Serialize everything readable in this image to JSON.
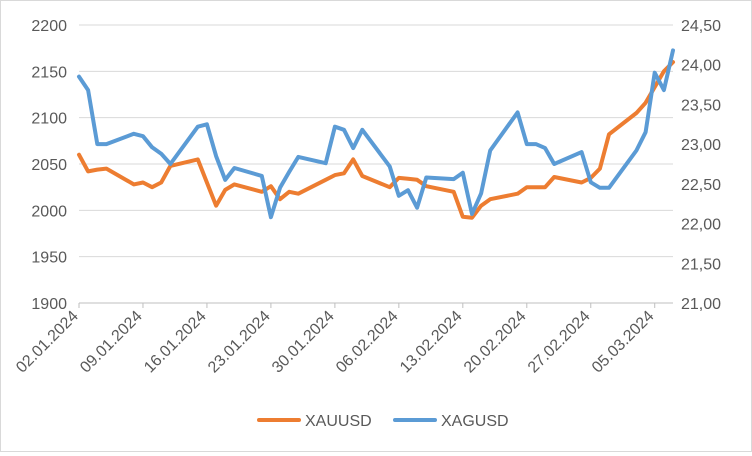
{
  "chart_data": {
    "type": "line",
    "title": "",
    "xlabel": "",
    "ylabel_left": "",
    "ylabel_right": "",
    "x_tick_labels": [
      "02.01.2024",
      "09.01.2024",
      "16.01.2024",
      "23.01.2024",
      "30.01.2024",
      "06.02.2024",
      "13.02.2024",
      "20.02.2024",
      "27.02.2024",
      "05.03.2024"
    ],
    "x_day_range": [
      1,
      66
    ],
    "x_tick_days": [
      1,
      8,
      15,
      22,
      29,
      36,
      43,
      50,
      57,
      64
    ],
    "y_left": {
      "ticks": [
        1900,
        1950,
        2000,
        2050,
        2100,
        2150,
        2200
      ],
      "tick_labels": [
        "1900",
        "1950",
        "2000",
        "2050",
        "2100",
        "2150",
        "2200"
      ],
      "ylim": [
        1900,
        2200
      ]
    },
    "y_right": {
      "ticks": [
        21.0,
        21.5,
        22.0,
        22.5,
        23.0,
        23.5,
        24.0,
        24.5
      ],
      "tick_labels": [
        "21,00",
        "21,50",
        "22,00",
        "22,50",
        "23,00",
        "23,50",
        "24,00",
        "24,50"
      ],
      "ylim": [
        21.0,
        24.5
      ]
    },
    "grid": true,
    "legend_position": "bottom",
    "series": [
      {
        "name": "XAUUSD",
        "axis": "left",
        "color": "#ed7d31",
        "points": [
          [
            1,
            2060
          ],
          [
            2,
            2042
          ],
          [
            3,
            2044
          ],
          [
            4,
            2045
          ],
          [
            7,
            2028
          ],
          [
            8,
            2030
          ],
          [
            9,
            2025
          ],
          [
            10,
            2030
          ],
          [
            11,
            2048
          ],
          [
            14,
            2055
          ],
          [
            15,
            2030
          ],
          [
            16,
            2005
          ],
          [
            17,
            2022
          ],
          [
            18,
            2028
          ],
          [
            21,
            2020
          ],
          [
            22,
            2026
          ],
          [
            23,
            2012
          ],
          [
            24,
            2020
          ],
          [
            25,
            2018
          ],
          [
            28,
            2033
          ],
          [
            29,
            2038
          ],
          [
            30,
            2040
          ],
          [
            31,
            2055
          ],
          [
            32,
            2037
          ],
          [
            35,
            2025
          ],
          [
            36,
            2035
          ],
          [
            37,
            2034
          ],
          [
            38,
            2033
          ],
          [
            39,
            2026
          ],
          [
            42,
            2020
          ],
          [
            43,
            1993
          ],
          [
            44,
            1992
          ],
          [
            45,
            2005
          ],
          [
            46,
            2012
          ],
          [
            49,
            2018
          ],
          [
            50,
            2025
          ],
          [
            51,
            2025
          ],
          [
            52,
            2025
          ],
          [
            53,
            2036
          ],
          [
            56,
            2030
          ],
          [
            57,
            2035
          ],
          [
            58,
            2045
          ],
          [
            59,
            2082
          ],
          [
            62,
            2105
          ],
          [
            63,
            2116
          ],
          [
            64,
            2133
          ],
          [
            65,
            2150
          ],
          [
            66,
            2160
          ]
        ]
      },
      {
        "name": "XAGUSD",
        "axis": "right",
        "color": "#5b9bd5",
        "points": [
          [
            1,
            23.85
          ],
          [
            2,
            23.68
          ],
          [
            3,
            23.0
          ],
          [
            4,
            23.0
          ],
          [
            7,
            23.13
          ],
          [
            8,
            23.1
          ],
          [
            9,
            22.96
          ],
          [
            10,
            22.88
          ],
          [
            11,
            22.75
          ],
          [
            14,
            23.22
          ],
          [
            15,
            23.25
          ],
          [
            16,
            22.85
          ],
          [
            17,
            22.55
          ],
          [
            18,
            22.7
          ],
          [
            21,
            22.6
          ],
          [
            22,
            22.08
          ],
          [
            23,
            22.45
          ],
          [
            24,
            22.65
          ],
          [
            25,
            22.84
          ],
          [
            28,
            22.76
          ],
          [
            29,
            23.22
          ],
          [
            30,
            23.18
          ],
          [
            31,
            22.95
          ],
          [
            32,
            23.18
          ],
          [
            35,
            22.72
          ],
          [
            36,
            22.35
          ],
          [
            37,
            22.42
          ],
          [
            38,
            22.2
          ],
          [
            39,
            22.58
          ],
          [
            42,
            22.56
          ],
          [
            43,
            22.64
          ],
          [
            44,
            22.12
          ],
          [
            45,
            22.38
          ],
          [
            46,
            22.92
          ],
          [
            49,
            23.4
          ],
          [
            50,
            23.0
          ],
          [
            51,
            23.0
          ],
          [
            52,
            22.95
          ],
          [
            53,
            22.75
          ],
          [
            56,
            22.9
          ],
          [
            57,
            22.52
          ],
          [
            58,
            22.45
          ],
          [
            59,
            22.45
          ],
          [
            62,
            22.92
          ],
          [
            63,
            23.15
          ],
          [
            64,
            23.9
          ],
          [
            65,
            23.68
          ],
          [
            66,
            24.18
          ]
        ]
      }
    ]
  }
}
